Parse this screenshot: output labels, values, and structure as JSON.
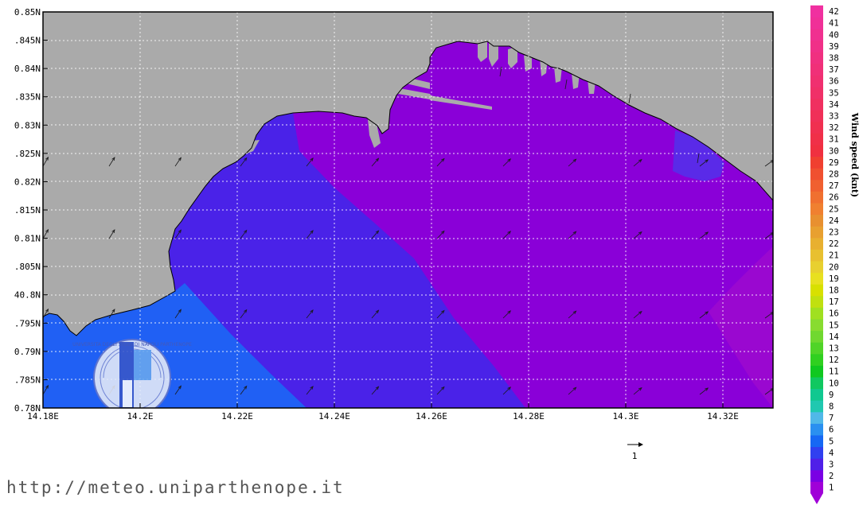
{
  "map": {
    "lat_ticks": [
      "0.85N",
      ".845N",
      "0.84N",
      ".835N",
      "0.83N",
      ".825N",
      "0.82N",
      ".815N",
      "0.81N",
      ".805N",
      "40.8N",
      ".795N",
      "0.79N",
      ".785N",
      "0.78N"
    ],
    "lon_ticks": [
      "14.18E",
      "14.2E",
      "14.22E",
      "14.24E",
      "14.26E",
      "14.28E",
      "14.3E",
      "14.32E"
    ],
    "vector_reference": "1",
    "colors": {
      "land": "#aaaaaa",
      "gridline": "#ffffff",
      "wind_2kn": "#8a00d8",
      "wind_3kn": "#4a22e8",
      "wind_5kn": "#2060f4"
    }
  },
  "colorbar": {
    "title": "Wind speed (knt)",
    "labels": [
      "1",
      "2",
      "3",
      "4",
      "5",
      "6",
      "7",
      "8",
      "9",
      "10",
      "11",
      "12",
      "13",
      "14",
      "15",
      "16",
      "17",
      "18",
      "19",
      "20",
      "21",
      "22",
      "23",
      "24",
      "25",
      "26",
      "27",
      "28",
      "29",
      "30",
      "31",
      "32",
      "33",
      "34",
      "35",
      "36",
      "37",
      "38",
      "39",
      "40",
      "41",
      "42"
    ],
    "colors": [
      "#a000d8",
      "#7a00e4",
      "#5020e8",
      "#3040f0",
      "#1668f4",
      "#2a90f0",
      "#50b8e8",
      "#20c8b0",
      "#10c890",
      "#10c860",
      "#10c820",
      "#30d020",
      "#50d428",
      "#70d830",
      "#88dc30",
      "#a0e020",
      "#c0e010",
      "#d8e000",
      "#e8e020",
      "#e8d030",
      "#e8c030",
      "#e8b030",
      "#e8a030",
      "#e89030",
      "#f08030",
      "#f07030",
      "#f06030",
      "#f05030",
      "#f04030",
      "#f03040",
      "#f03048",
      "#f03050",
      "#f03058",
      "#f03060",
      "#f03068",
      "#f03070",
      "#f03078",
      "#f03080",
      "#f03088",
      "#f03090",
      "#f03098",
      "#f030a0"
    ]
  },
  "logo_text": "UNIVERSITA DEGLI STUDI DI NAPOLI PARTHENOPE",
  "footer": {
    "url": "http://meteo.uniparthenope.it"
  }
}
